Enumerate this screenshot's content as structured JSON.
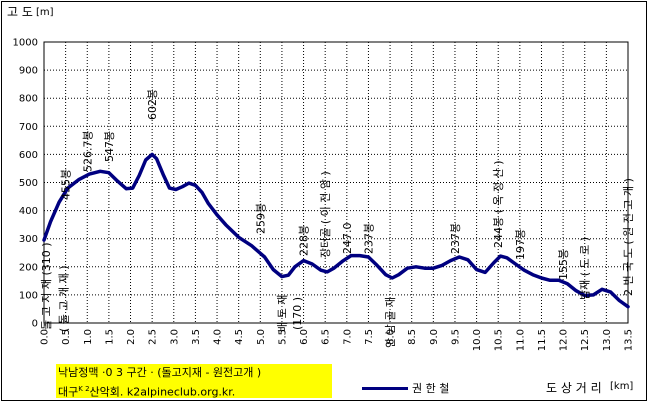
{
  "colors": {
    "line": "#000080",
    "grid": "#000000",
    "credit_bg": "#ffff00"
  },
  "ylabel": "고 도",
  "ylabel_unit": "[m]",
  "xlabel": "도 상 거 리",
  "xlabel_unit": "[km]",
  "credit": {
    "line1": "낙남정맥 ·0 3 구간 · (돌고지재 - 원전고개 )",
    "line2": "대구",
    "line2_sup": "K 2",
    "line2_rest": "산악회. k2alpineclub.org.kr."
  },
  "legend_label": "권 한 철",
  "chart_data": {
    "type": "line",
    "ylim": [
      0,
      1000
    ],
    "xlim": [
      0,
      13.5
    ],
    "yticks": [
      "0",
      "100",
      "200",
      "300",
      "400",
      "500",
      "600",
      "700",
      "800",
      "900",
      "1000"
    ],
    "xticks": [
      "0.0",
      "0.5",
      "1.0",
      "1.5",
      "2.0",
      "2.5",
      "3.0",
      "3.5",
      "4.0",
      "4.5",
      "5.0",
      "5.5",
      "6.0",
      "6.5",
      "7.0",
      "7.5",
      "8.0",
      "8.5",
      "9.0",
      "9.5",
      "10.0",
      "10.5",
      "11.0",
      "11.5",
      "12.0",
      "12.5",
      "13.0",
      "13.5"
    ],
    "grid": true,
    "x": [
      0,
      0.15,
      0.35,
      0.55,
      0.8,
      1.05,
      1.3,
      1.5,
      1.7,
      1.9,
      2.05,
      2.2,
      2.35,
      2.5,
      2.6,
      2.75,
      2.9,
      3.05,
      3.2,
      3.35,
      3.5,
      3.65,
      3.8,
      4.0,
      4.2,
      4.5,
      4.8,
      5.1,
      5.3,
      5.5,
      5.65,
      5.8,
      6.0,
      6.2,
      6.4,
      6.55,
      6.7,
      6.9,
      7.1,
      7.3,
      7.5,
      7.7,
      7.9,
      8.05,
      8.2,
      8.4,
      8.6,
      8.8,
      9.0,
      9.2,
      9.4,
      9.6,
      9.8,
      10.0,
      10.2,
      10.4,
      10.55,
      10.7,
      10.9,
      11.1,
      11.3,
      11.5,
      11.7,
      11.9,
      12.1,
      12.3,
      12.5,
      12.7,
      12.9,
      13.1,
      13.3,
      13.5
    ],
    "y": [
      295,
      360,
      430,
      480,
      510,
      530,
      540,
      535,
      505,
      478,
      480,
      525,
      580,
      600,
      585,
      530,
      480,
      475,
      485,
      498,
      490,
      465,
      425,
      385,
      350,
      305,
      275,
      235,
      190,
      165,
      170,
      200,
      222,
      210,
      188,
      182,
      195,
      220,
      240,
      240,
      235,
      205,
      172,
      160,
      172,
      195,
      200,
      195,
      195,
      205,
      222,
      235,
      225,
      190,
      180,
      215,
      238,
      232,
      210,
      188,
      172,
      160,
      152,
      152,
      140,
      115,
      98,
      100,
      120,
      110,
      80,
      58
    ],
    "annotations": [
      {
        "text": "455봉",
        "x": 0.5
      },
      {
        "text": "526.7봉",
        "x": 1.0
      },
      {
        "text": "547봉",
        "x": 1.5
      },
      {
        "text": "602봉",
        "x": 2.5
      },
      {
        "text": "259봉",
        "x": 5.0
      },
      {
        "text": "228봉",
        "x": 6.0
      },
      {
        "text": "장터골 ( 이 전 암 )",
        "x": 6.5
      },
      {
        "text": "247.0",
        "x": 7.0
      },
      {
        "text": "237봉",
        "x": 7.5
      },
      {
        "text": "237봉",
        "x": 9.5
      },
      {
        "text": "244봉 ( 옥 정 산 )",
        "x": 10.5
      },
      {
        "text": "197봉",
        "x": 11.0
      },
      {
        "text": "155봉",
        "x": 12.0
      },
      {
        "text": "밤재 ( 도 로 )",
        "x": 12.5
      },
      {
        "text": "2 번 국 도 ( 원 전 고 개 )",
        "x": 13.5
      },
      {
        "text": "돌 고 지 재 (310 )",
        "x": 0.05
      },
      {
        "text": "( 돌 고 개 재 )",
        "x": 0.45
      },
      {
        "text": "배 토 재",
        "x": 5.5
      },
      {
        "text": "(170 )",
        "x": 5.85
      },
      {
        "text": "안 남 골 재",
        "x": 8.0
      }
    ]
  }
}
